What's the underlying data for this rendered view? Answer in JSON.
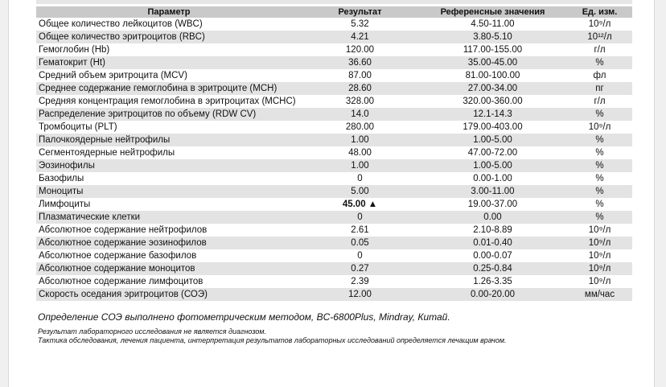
{
  "table": {
    "header": [
      "Параметр",
      "Результат",
      "Референсные значения",
      "Ед. изм."
    ],
    "rows": [
      [
        "Общее количество лейкоцитов (WBC)",
        "5.32",
        "4.50-11.00",
        "10⁹/л"
      ],
      [
        "Общее количество эритроцитов (RBC)",
        "4.21",
        "3.80-5.10",
        "10¹²/л"
      ],
      [
        "Гемоглобин (Hb)",
        "120.00",
        "117.00-155.00",
        "г/л"
      ],
      [
        "Гематокрит (Ht)",
        "36.60",
        "35.00-45.00",
        "%"
      ],
      [
        "Средний объем эритроцита (MCV)",
        "87.00",
        "81.00-100.00",
        "фл"
      ],
      [
        "Среднее содержание гемоглобина в эритроците (MCH)",
        "28.60",
        "27.00-34.00",
        "пг"
      ],
      [
        "Средняя концентрация гемоглобина в эритроцитах (MCHC)",
        "328.00",
        "320.00-360.00",
        "г/л"
      ],
      [
        "Распределение эритроцитов по объему (RDW CV)",
        "14.0",
        "12.1-14.3",
        "%"
      ],
      [
        "Тромбоциты (PLT)",
        "280.00",
        "179.00-403.00",
        "10⁹/л"
      ],
      [
        "Палочкоядерные нейтрофилы",
        "1.00",
        "1.00-5.00",
        "%"
      ],
      [
        "Сегментоядерные нейтрофилы",
        "48.00",
        "47.00-72.00",
        "%"
      ],
      [
        "Эозинофилы",
        "1.00",
        "1.00-5.00",
        "%"
      ],
      [
        "Базофилы",
        "0",
        "0.00-1.00",
        "%"
      ],
      [
        "Моноциты",
        "5.00",
        "3.00-11.00",
        "%"
      ],
      [
        "Лимфоциты",
        "45.00 ▲",
        "19.00-37.00",
        "%"
      ],
      [
        "Плазматические клетки",
        "0",
        "0.00",
        "%"
      ],
      [
        "Абсолютное содержание нейтрофилов",
        "2.61",
        "2.10-8.89",
        "10⁹/л"
      ],
      [
        "Абсолютное содержание эозинофилов",
        "0.05",
        "0.01-0.40",
        "10⁹/л"
      ],
      [
        "Абсолютное содержание базофилов",
        "0",
        "0.00-0.07",
        "10⁹/л"
      ],
      [
        "Абсолютное содержание моноцитов",
        "0.27",
        "0.25-0.84",
        "10⁹/л"
      ],
      [
        "Абсолютное содержание лимфоцитов",
        "2.39",
        "1.26-3.35",
        "10⁹/л"
      ],
      [
        "Скорость оседания эритроцитов (СОЭ)",
        "12.00",
        "0.00-20.00",
        "мм/час"
      ]
    ]
  },
  "notes": [
    "Определение СОЭ выполнено фотометрическим методом, BC-6800Plus, Mindray, Китай.",
    "Результат лабораторного исследования не является диагнозом.",
    "Тактика обследования, лечения пациента, интерпретация результатов лабораторных исследований определяется лечащим врачом."
  ]
}
